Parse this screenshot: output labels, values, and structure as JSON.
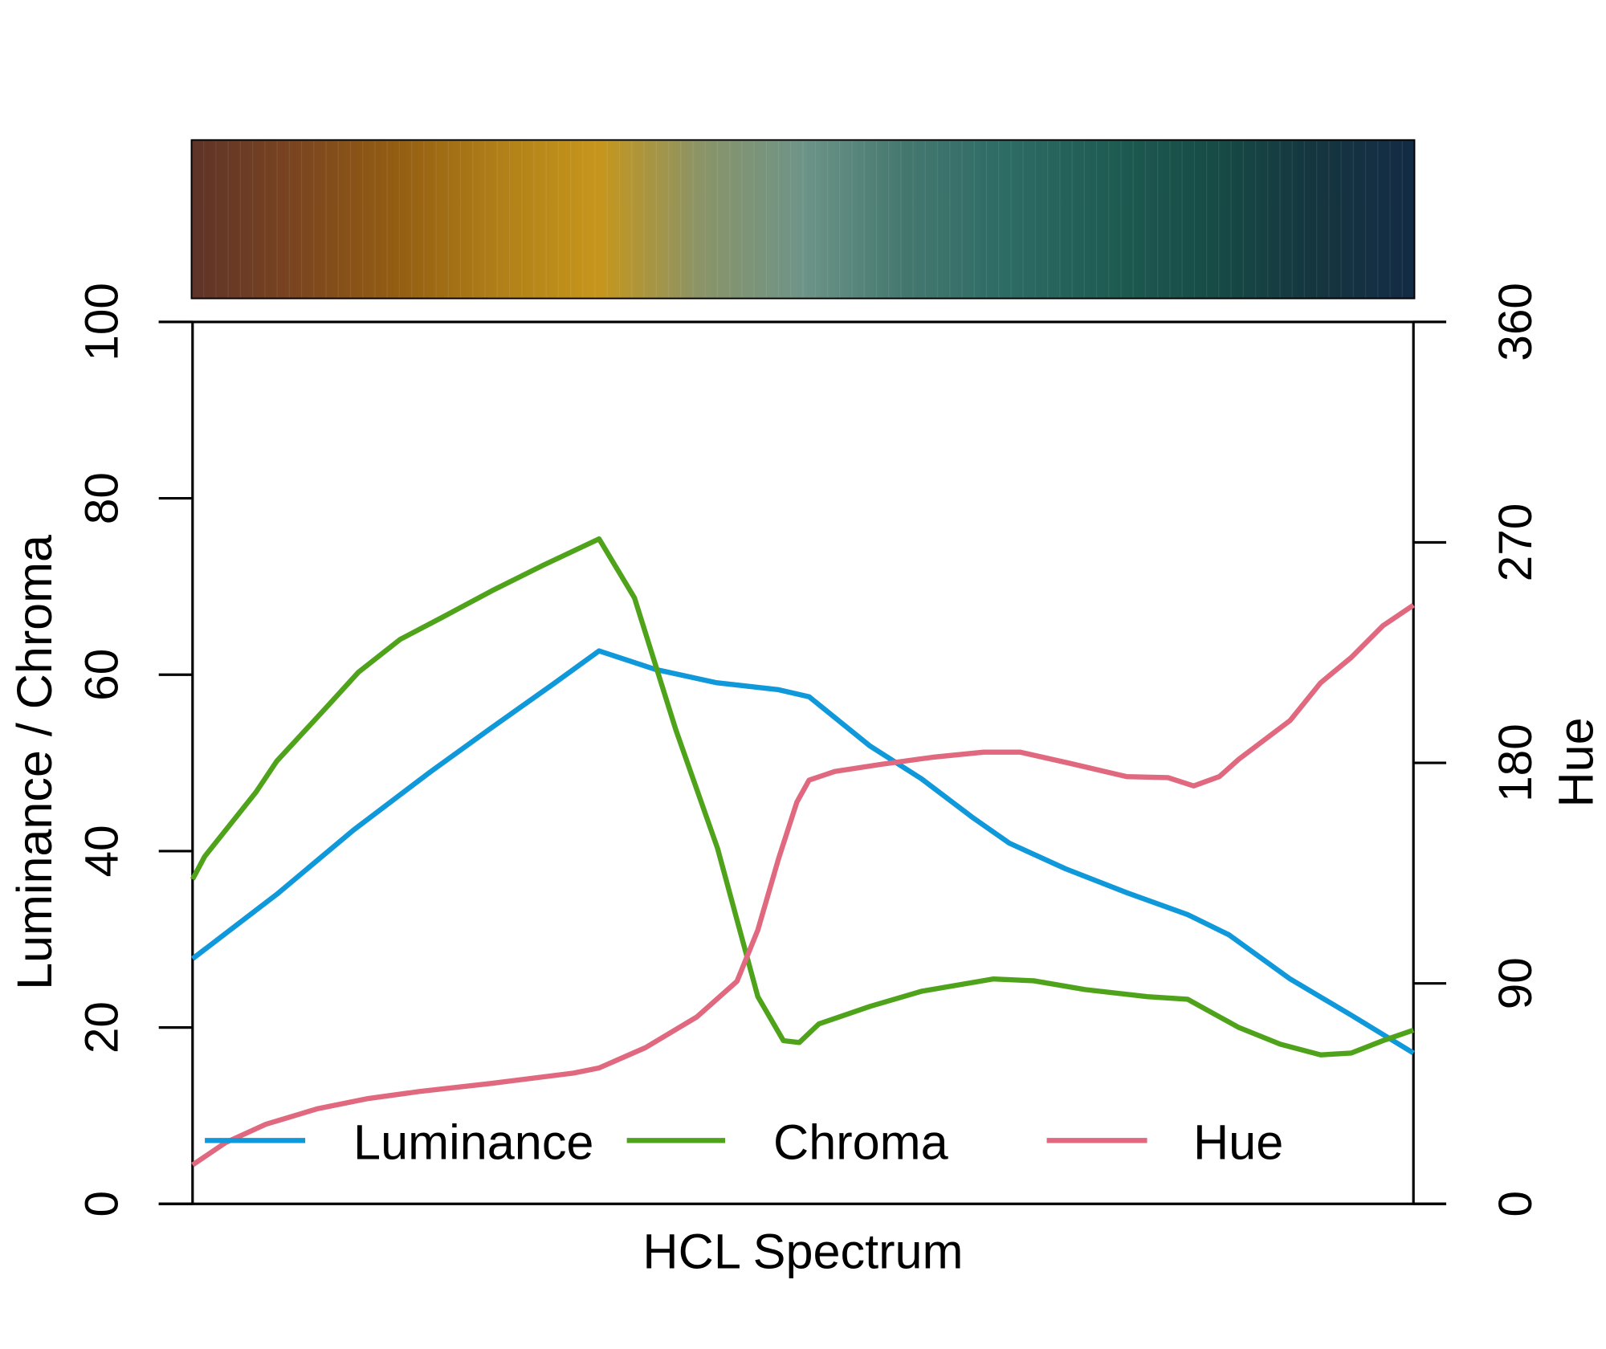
{
  "chart_data": {
    "type": "line",
    "title": "",
    "xlabel": "HCL Spectrum",
    "ylabel_left": "Luminance / Chroma",
    "ylabel_right": "Hue",
    "ylim_left": [
      0,
      100
    ],
    "ylim_right": [
      0,
      360
    ],
    "xlim": [
      0,
      100
    ],
    "left_ticks": [
      "0",
      "20",
      "40",
      "60",
      "80",
      "100"
    ],
    "right_ticks": [
      "0",
      "90",
      "180",
      "270",
      "360"
    ],
    "grid": false,
    "legend_position": "bottom",
    "legend": [
      "Luminance",
      "Chroma",
      "Hue"
    ],
    "colorbar_stops": [
      "#5e3328",
      "#7a4420",
      "#935d12",
      "#b07f18",
      "#c6961c",
      "#8a9468",
      "#6e9488",
      "#44786f",
      "#2d6b65",
      "#1f5c52",
      "#174c46",
      "#15363f",
      "#132b45"
    ],
    "series": [
      {
        "name": "Luminance",
        "axis": "left",
        "color": "#0f98da",
        "x": [
          0,
          6.9,
          13.2,
          19.5,
          24.5,
          29.5,
          33.3,
          37.9,
          42.9,
          48,
          50.5,
          55.5,
          59.7,
          63.9,
          66.9,
          71.5,
          76.5,
          81.5,
          84.9,
          89.9,
          94.9,
          100
        ],
        "y": [
          27.8,
          35.1,
          42.4,
          49,
          54,
          58.9,
          62.7,
          60.6,
          59.1,
          58.3,
          57.5,
          51.9,
          48.2,
          43.8,
          40.9,
          38,
          35.3,
          32.8,
          30.5,
          25.5,
          21.4,
          17.1
        ]
      },
      {
        "name": "Chroma",
        "axis": "left",
        "color": "#4fa31b",
        "x": [
          0,
          1,
          5.2,
          6.9,
          11.1,
          13.6,
          17,
          20.3,
          24.5,
          28.7,
          33.3,
          36.2,
          39.6,
          43,
          46.3,
          48.4,
          49.7,
          51.3,
          55.5,
          59.7,
          65.6,
          68.9,
          73.1,
          78.2,
          81.5,
          85.7,
          89.1,
          92.4,
          94.9,
          97.5,
          100
        ],
        "y": [
          36.8,
          39.4,
          46.7,
          50.2,
          56.5,
          60.3,
          64,
          66.4,
          69.5,
          72.4,
          75.4,
          68.7,
          53.7,
          40.3,
          23.5,
          18.5,
          18.3,
          20.4,
          22.4,
          24.1,
          25.5,
          25.3,
          24.3,
          23.5,
          23.2,
          20,
          18.1,
          16.9,
          17.1,
          18.5,
          19.7
        ]
      },
      {
        "name": "Hue",
        "axis": "right",
        "color": "#e0687f",
        "x": [
          0,
          2.7,
          6,
          10.2,
          14.4,
          18.6,
          24.5,
          31.2,
          33.3,
          37.1,
          41.3,
          44.6,
          46.3,
          48,
          49.5,
          50.5,
          52.6,
          56.4,
          60.6,
          64.8,
          67.8,
          71.9,
          76.5,
          79.9,
          82,
          84.1,
          85.7,
          89.9,
          92.4,
          94.9,
          97.5,
          100
        ],
        "y": [
          15.9,
          25,
          32.5,
          38.8,
          43,
          45.9,
          49.2,
          53.4,
          55.5,
          63.8,
          76.3,
          90.9,
          111.8,
          141,
          164,
          173,
          176.5,
          179.4,
          182.3,
          184.4,
          184.4,
          179.8,
          174.4,
          174,
          170.6,
          174.4,
          181.5,
          197.3,
          212.7,
          223,
          236,
          244.4
        ]
      }
    ]
  }
}
